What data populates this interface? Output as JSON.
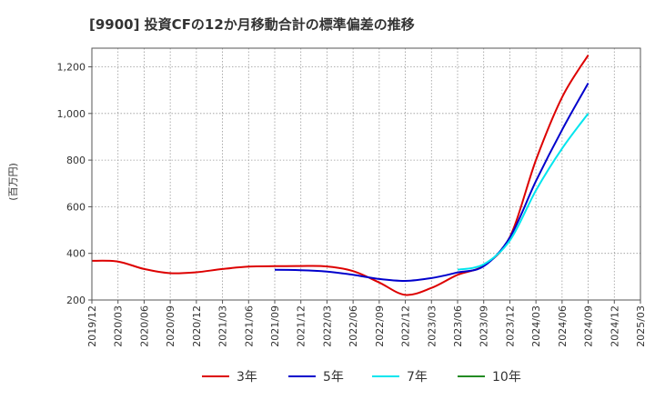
{
  "chart_data": {
    "type": "line",
    "title": "[9900]  投資CFの12か月移動合計の標準偏差の推移",
    "ylabel": "(百万円)",
    "xlabel": "",
    "ylim": [
      200,
      1280
    ],
    "yticks": [
      200,
      400,
      600,
      800,
      1000,
      1200
    ],
    "ytick_labels": [
      "200",
      "400",
      "600",
      "800",
      "1,000",
      "1,200"
    ],
    "xticks": [
      "2019/12",
      "2020/03",
      "2020/06",
      "2020/09",
      "2020/12",
      "2021/03",
      "2021/06",
      "2021/09",
      "2021/12",
      "2022/03",
      "2022/06",
      "2022/09",
      "2022/12",
      "2023/03",
      "2023/06",
      "2023/09",
      "2023/12",
      "2024/03",
      "2024/06",
      "2024/09",
      "2024/12",
      "2025/03"
    ],
    "grid": true,
    "legend_position": "bottom",
    "series": [
      {
        "name": "3年",
        "color": "#dd0000",
        "points": [
          [
            "2019/12",
            368
          ],
          [
            "2020/03",
            365
          ],
          [
            "2020/06",
            333
          ],
          [
            "2020/09",
            315
          ],
          [
            "2020/12",
            319
          ],
          [
            "2021/03",
            333
          ],
          [
            "2021/06",
            343
          ],
          [
            "2021/09",
            345
          ],
          [
            "2021/12",
            346
          ],
          [
            "2022/03",
            344
          ],
          [
            "2022/06",
            324
          ],
          [
            "2022/09",
            275
          ],
          [
            "2022/12",
            222
          ],
          [
            "2023/03",
            252
          ],
          [
            "2023/06",
            308
          ],
          [
            "2023/09",
            348
          ],
          [
            "2023/12",
            470
          ],
          [
            "2024/03",
            800
          ],
          [
            "2024/06",
            1070
          ],
          [
            "2024/09",
            1250
          ]
        ]
      },
      {
        "name": "5年",
        "color": "#0000cc",
        "points": [
          [
            "2021/09",
            330
          ],
          [
            "2021/12",
            328
          ],
          [
            "2022/03",
            322
          ],
          [
            "2022/06",
            308
          ],
          [
            "2022/09",
            290
          ],
          [
            "2022/12",
            282
          ],
          [
            "2023/03",
            294
          ],
          [
            "2023/06",
            318
          ],
          [
            "2023/09",
            345
          ],
          [
            "2023/12",
            468
          ],
          [
            "2024/03",
            710
          ],
          [
            "2024/06",
            930
          ],
          [
            "2024/09",
            1130
          ]
        ]
      },
      {
        "name": "7年",
        "color": "#00e5ee",
        "points": [
          [
            "2023/06",
            330
          ],
          [
            "2023/09",
            353
          ],
          [
            "2023/12",
            455
          ],
          [
            "2024/03",
            670
          ],
          [
            "2024/06",
            850
          ],
          [
            "2024/09",
            1000
          ]
        ]
      },
      {
        "name": "10年",
        "color": "#228b22",
        "points": []
      }
    ]
  }
}
